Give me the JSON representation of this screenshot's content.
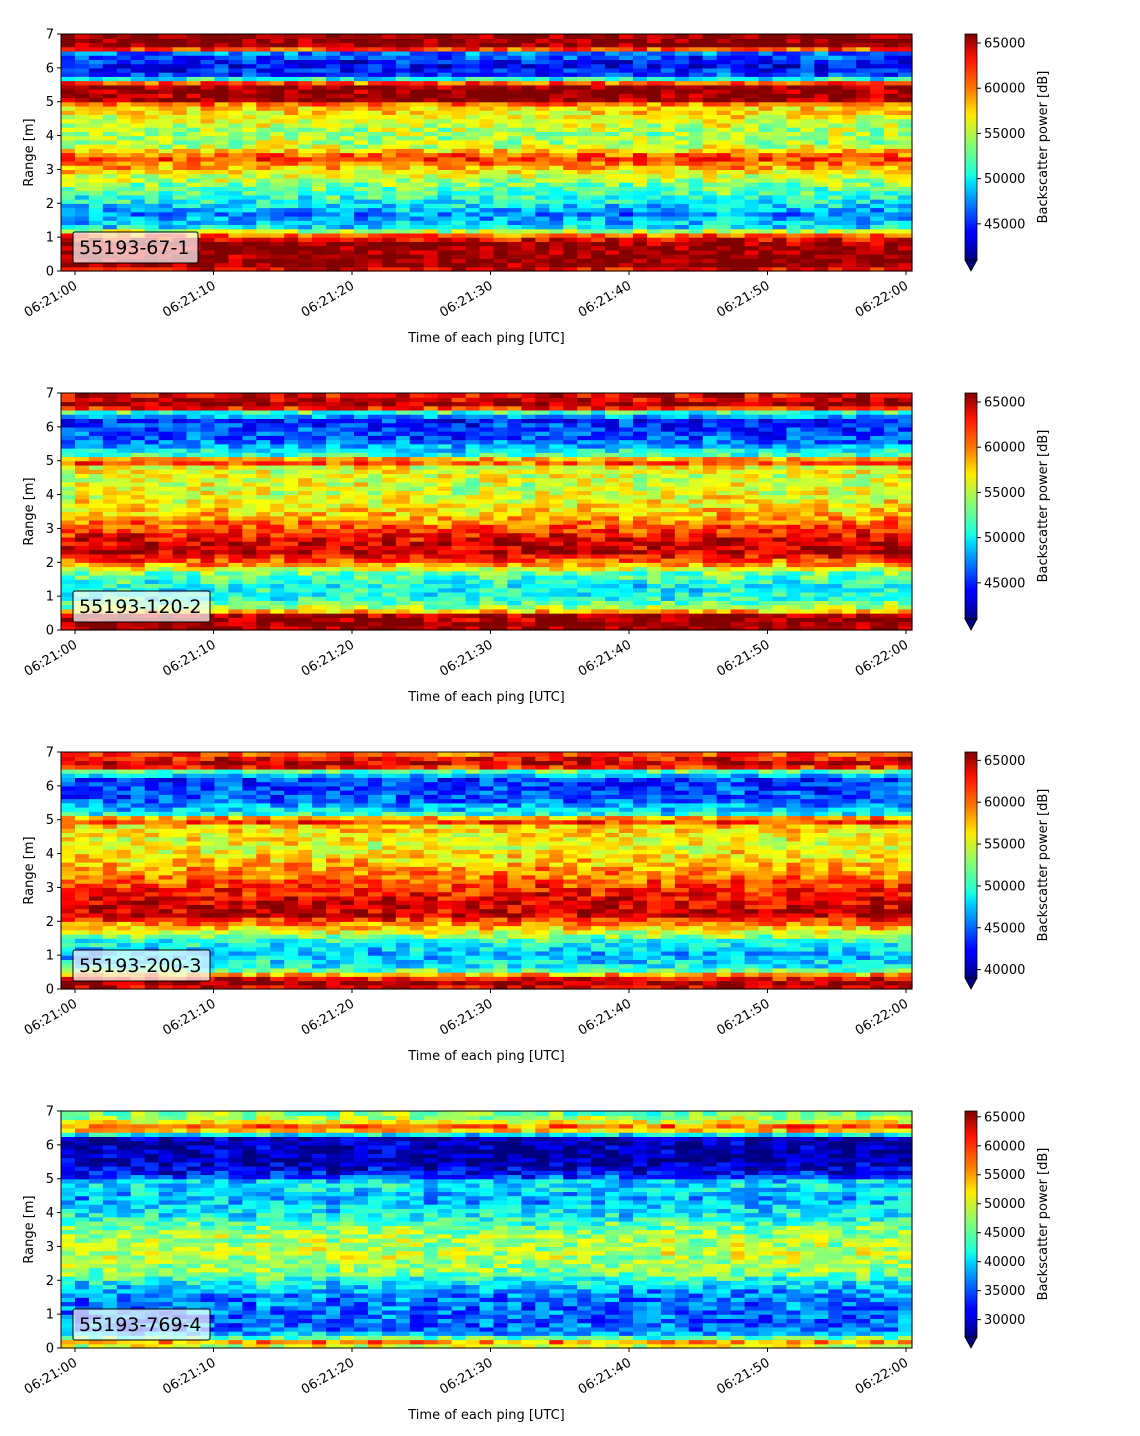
{
  "figure": {
    "colormap": "jet",
    "under_color": "#00007f",
    "panel_label_bg": "rgba(255,255,255,0.7)"
  },
  "chart_data": [
    {
      "type": "heatmap",
      "label": "55193-67-1",
      "xlabel": "Time of each ping [UTC]",
      "ylabel": "Range [m]",
      "colorbar_label": "Backscatter power [dB]",
      "x_ticks": [
        "06:21:00",
        "06:21:10",
        "06:21:20",
        "06:21:30",
        "06:21:40",
        "06:21:50",
        "06:22:00"
      ],
      "y_ticks": [
        "0",
        "1",
        "2",
        "3",
        "4",
        "5",
        "6",
        "7"
      ],
      "ylim": [
        0,
        7
      ],
      "color_range": [
        41000,
        66000
      ],
      "colorbar_ticks": [
        "45000",
        "50000",
        "55000",
        "60000",
        "65000"
      ],
      "range_profile": [
        {
          "r": 0.0,
          "v": 60000
        },
        {
          "r": 0.12,
          "v": 66000
        },
        {
          "r": 0.5,
          "v": 66000
        },
        {
          "r": 0.85,
          "v": 65500
        },
        {
          "r": 1.05,
          "v": 61000
        },
        {
          "r": 1.3,
          "v": 50000
        },
        {
          "r": 1.7,
          "v": 47500
        },
        {
          "r": 2.1,
          "v": 51000
        },
        {
          "r": 2.5,
          "v": 53000
        },
        {
          "r": 2.9,
          "v": 56500
        },
        {
          "r": 3.35,
          "v": 62000
        },
        {
          "r": 3.7,
          "v": 55000
        },
        {
          "r": 4.1,
          "v": 54500
        },
        {
          "r": 4.5,
          "v": 56000
        },
        {
          "r": 4.9,
          "v": 58000
        },
        {
          "r": 5.05,
          "v": 65500
        },
        {
          "r": 5.5,
          "v": 65500
        },
        {
          "r": 5.75,
          "v": 46000
        },
        {
          "r": 6.1,
          "v": 44000
        },
        {
          "r": 6.45,
          "v": 47000
        },
        {
          "r": 6.6,
          "v": 66000
        },
        {
          "r": 7.0,
          "v": 66000
        }
      ]
    },
    {
      "type": "heatmap",
      "label": "55193-120-2",
      "xlabel": "Time of each ping [UTC]",
      "ylabel": "Range [m]",
      "colorbar_label": "Backscatter power [dB]",
      "x_ticks": [
        "06:21:00",
        "06:21:10",
        "06:21:20",
        "06:21:30",
        "06:21:40",
        "06:21:50",
        "06:22:00"
      ],
      "y_ticks": [
        "0",
        "1",
        "2",
        "3",
        "4",
        "5",
        "6",
        "7"
      ],
      "ylim": [
        0,
        7
      ],
      "color_range": [
        41000,
        66000
      ],
      "colorbar_ticks": [
        "45000",
        "50000",
        "55000",
        "60000",
        "65000"
      ],
      "range_profile": [
        {
          "r": 0.0,
          "v": 64000
        },
        {
          "r": 0.1,
          "v": 66000
        },
        {
          "r": 0.45,
          "v": 65000
        },
        {
          "r": 0.6,
          "v": 56000
        },
        {
          "r": 0.9,
          "v": 51000
        },
        {
          "r": 1.3,
          "v": 50500
        },
        {
          "r": 1.7,
          "v": 53000
        },
        {
          "r": 2.0,
          "v": 60000
        },
        {
          "r": 2.3,
          "v": 64500
        },
        {
          "r": 2.7,
          "v": 63500
        },
        {
          "r": 3.0,
          "v": 61000
        },
        {
          "r": 3.5,
          "v": 57500
        },
        {
          "r": 4.2,
          "v": 55500
        },
        {
          "r": 4.8,
          "v": 56000
        },
        {
          "r": 5.0,
          "v": 63000
        },
        {
          "r": 5.15,
          "v": 52000
        },
        {
          "r": 5.6,
          "v": 46500
        },
        {
          "r": 6.2,
          "v": 45000
        },
        {
          "r": 6.45,
          "v": 52000
        },
        {
          "r": 6.6,
          "v": 65500
        },
        {
          "r": 7.0,
          "v": 63000
        }
      ]
    },
    {
      "type": "heatmap",
      "label": "55193-200-3",
      "xlabel": "Time of each ping [UTC]",
      "ylabel": "Range [m]",
      "colorbar_label": "Backscatter power [dB]",
      "x_ticks": [
        "06:21:00",
        "06:21:10",
        "06:21:20",
        "06:21:30",
        "06:21:40",
        "06:21:50",
        "06:22:00"
      ],
      "y_ticks": [
        "0",
        "1",
        "2",
        "3",
        "4",
        "5",
        "6",
        "7"
      ],
      "ylim": [
        0,
        7
      ],
      "color_range": [
        39000,
        66000
      ],
      "colorbar_ticks": [
        "40000",
        "45000",
        "50000",
        "55000",
        "60000",
        "65000"
      ],
      "range_profile": [
        {
          "r": 0.0,
          "v": 62000
        },
        {
          "r": 0.15,
          "v": 66000
        },
        {
          "r": 0.35,
          "v": 62000
        },
        {
          "r": 0.6,
          "v": 50000
        },
        {
          "r": 1.0,
          "v": 47000
        },
        {
          "r": 1.4,
          "v": 49500
        },
        {
          "r": 1.8,
          "v": 57000
        },
        {
          "r": 2.2,
          "v": 64000
        },
        {
          "r": 2.6,
          "v": 63500
        },
        {
          "r": 3.0,
          "v": 61500
        },
        {
          "r": 3.5,
          "v": 58500
        },
        {
          "r": 4.2,
          "v": 55500
        },
        {
          "r": 4.8,
          "v": 56500
        },
        {
          "r": 5.0,
          "v": 63500
        },
        {
          "r": 5.15,
          "v": 50000
        },
        {
          "r": 5.6,
          "v": 44500
        },
        {
          "r": 6.2,
          "v": 44000
        },
        {
          "r": 6.45,
          "v": 52000
        },
        {
          "r": 6.6,
          "v": 65000
        },
        {
          "r": 6.9,
          "v": 62000
        },
        {
          "r": 7.0,
          "v": 58000
        }
      ]
    },
    {
      "type": "heatmap",
      "label": "55193-769-4",
      "xlabel": "Time of each ping [UTC]",
      "ylabel": "Range [m]",
      "colorbar_label": "Backscatter power [dB]",
      "x_ticks": [
        "06:21:00",
        "06:21:10",
        "06:21:20",
        "06:21:30",
        "06:21:40",
        "06:21:50",
        "06:22:00"
      ],
      "y_ticks": [
        "0",
        "1",
        "2",
        "3",
        "4",
        "5",
        "6",
        "7"
      ],
      "ylim": [
        0,
        7
      ],
      "color_range": [
        27000,
        66000
      ],
      "colorbar_ticks": [
        "30000",
        "35000",
        "40000",
        "45000",
        "50000",
        "55000",
        "60000",
        "65000"
      ],
      "range_profile": [
        {
          "r": 0.0,
          "v": 42000
        },
        {
          "r": 0.15,
          "v": 60000
        },
        {
          "r": 0.25,
          "v": 48000
        },
        {
          "r": 0.5,
          "v": 36000
        },
        {
          "r": 1.0,
          "v": 35500
        },
        {
          "r": 1.6,
          "v": 37000
        },
        {
          "r": 1.9,
          "v": 40500
        },
        {
          "r": 2.2,
          "v": 46000
        },
        {
          "r": 2.8,
          "v": 49000
        },
        {
          "r": 3.4,
          "v": 47500
        },
        {
          "r": 3.9,
          "v": 42000
        },
        {
          "r": 4.4,
          "v": 38500
        },
        {
          "r": 4.9,
          "v": 41500
        },
        {
          "r": 5.1,
          "v": 33000
        },
        {
          "r": 5.5,
          "v": 28500
        },
        {
          "r": 6.2,
          "v": 28500
        },
        {
          "r": 6.35,
          "v": 45000
        },
        {
          "r": 6.5,
          "v": 60000
        },
        {
          "r": 6.7,
          "v": 50000
        },
        {
          "r": 7.0,
          "v": 45000
        }
      ]
    }
  ]
}
